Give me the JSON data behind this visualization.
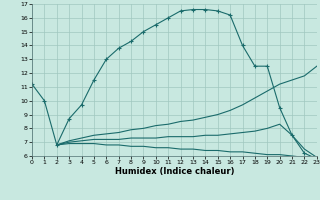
{
  "xlabel": "Humidex (Indice chaleur)",
  "bg_color": "#c8e8e0",
  "grid_color": "#a0c8c0",
  "line_color": "#1a6b6b",
  "line1_x": [
    0,
    1,
    2,
    3,
    4,
    5,
    6,
    7,
    8,
    9,
    10,
    11,
    12,
    13,
    14,
    15,
    16,
    17,
    18,
    19,
    20,
    21,
    22,
    23
  ],
  "line1_y": [
    11.2,
    10.0,
    6.8,
    8.7,
    9.7,
    11.5,
    13.0,
    13.8,
    14.3,
    15.0,
    15.5,
    16.0,
    16.5,
    16.6,
    16.6,
    16.5,
    16.2,
    14.0,
    12.5,
    12.5,
    9.5,
    7.5,
    6.2,
    5.8
  ],
  "line2_x": [
    2,
    3,
    4,
    5,
    6,
    7,
    8,
    9,
    10,
    11,
    12,
    13,
    14,
    15,
    16,
    17,
    18,
    19,
    20,
    21,
    22,
    23
  ],
  "line2_y": [
    6.8,
    7.1,
    7.3,
    7.5,
    7.6,
    7.7,
    7.9,
    8.0,
    8.2,
    8.3,
    8.5,
    8.6,
    8.8,
    9.0,
    9.3,
    9.7,
    10.2,
    10.7,
    11.2,
    11.5,
    11.8,
    12.5
  ],
  "line3_x": [
    2,
    3,
    4,
    5,
    6,
    7,
    8,
    9,
    10,
    11,
    12,
    13,
    14,
    15,
    16,
    17,
    18,
    19,
    20,
    21,
    22,
    23
  ],
  "line3_y": [
    6.8,
    7.0,
    7.1,
    7.2,
    7.2,
    7.2,
    7.3,
    7.3,
    7.3,
    7.4,
    7.4,
    7.4,
    7.5,
    7.5,
    7.6,
    7.7,
    7.8,
    8.0,
    8.3,
    7.5,
    6.5,
    5.9
  ],
  "line4_x": [
    2,
    3,
    4,
    5,
    6,
    7,
    8,
    9,
    10,
    11,
    12,
    13,
    14,
    15,
    16,
    17,
    18,
    19,
    20,
    21,
    22,
    23
  ],
  "line4_y": [
    6.8,
    6.9,
    6.9,
    6.9,
    6.8,
    6.8,
    6.7,
    6.7,
    6.6,
    6.6,
    6.5,
    6.5,
    6.4,
    6.4,
    6.3,
    6.3,
    6.2,
    6.1,
    6.1,
    6.0,
    5.9,
    5.8
  ],
  "xlim": [
    0,
    23
  ],
  "ylim": [
    6,
    17
  ],
  "yticks": [
    6,
    7,
    8,
    9,
    10,
    11,
    12,
    13,
    14,
    15,
    16,
    17
  ],
  "xticks": [
    0,
    1,
    2,
    3,
    4,
    5,
    6,
    7,
    8,
    9,
    10,
    11,
    12,
    13,
    14,
    15,
    16,
    17,
    18,
    19,
    20,
    21,
    22,
    23
  ]
}
